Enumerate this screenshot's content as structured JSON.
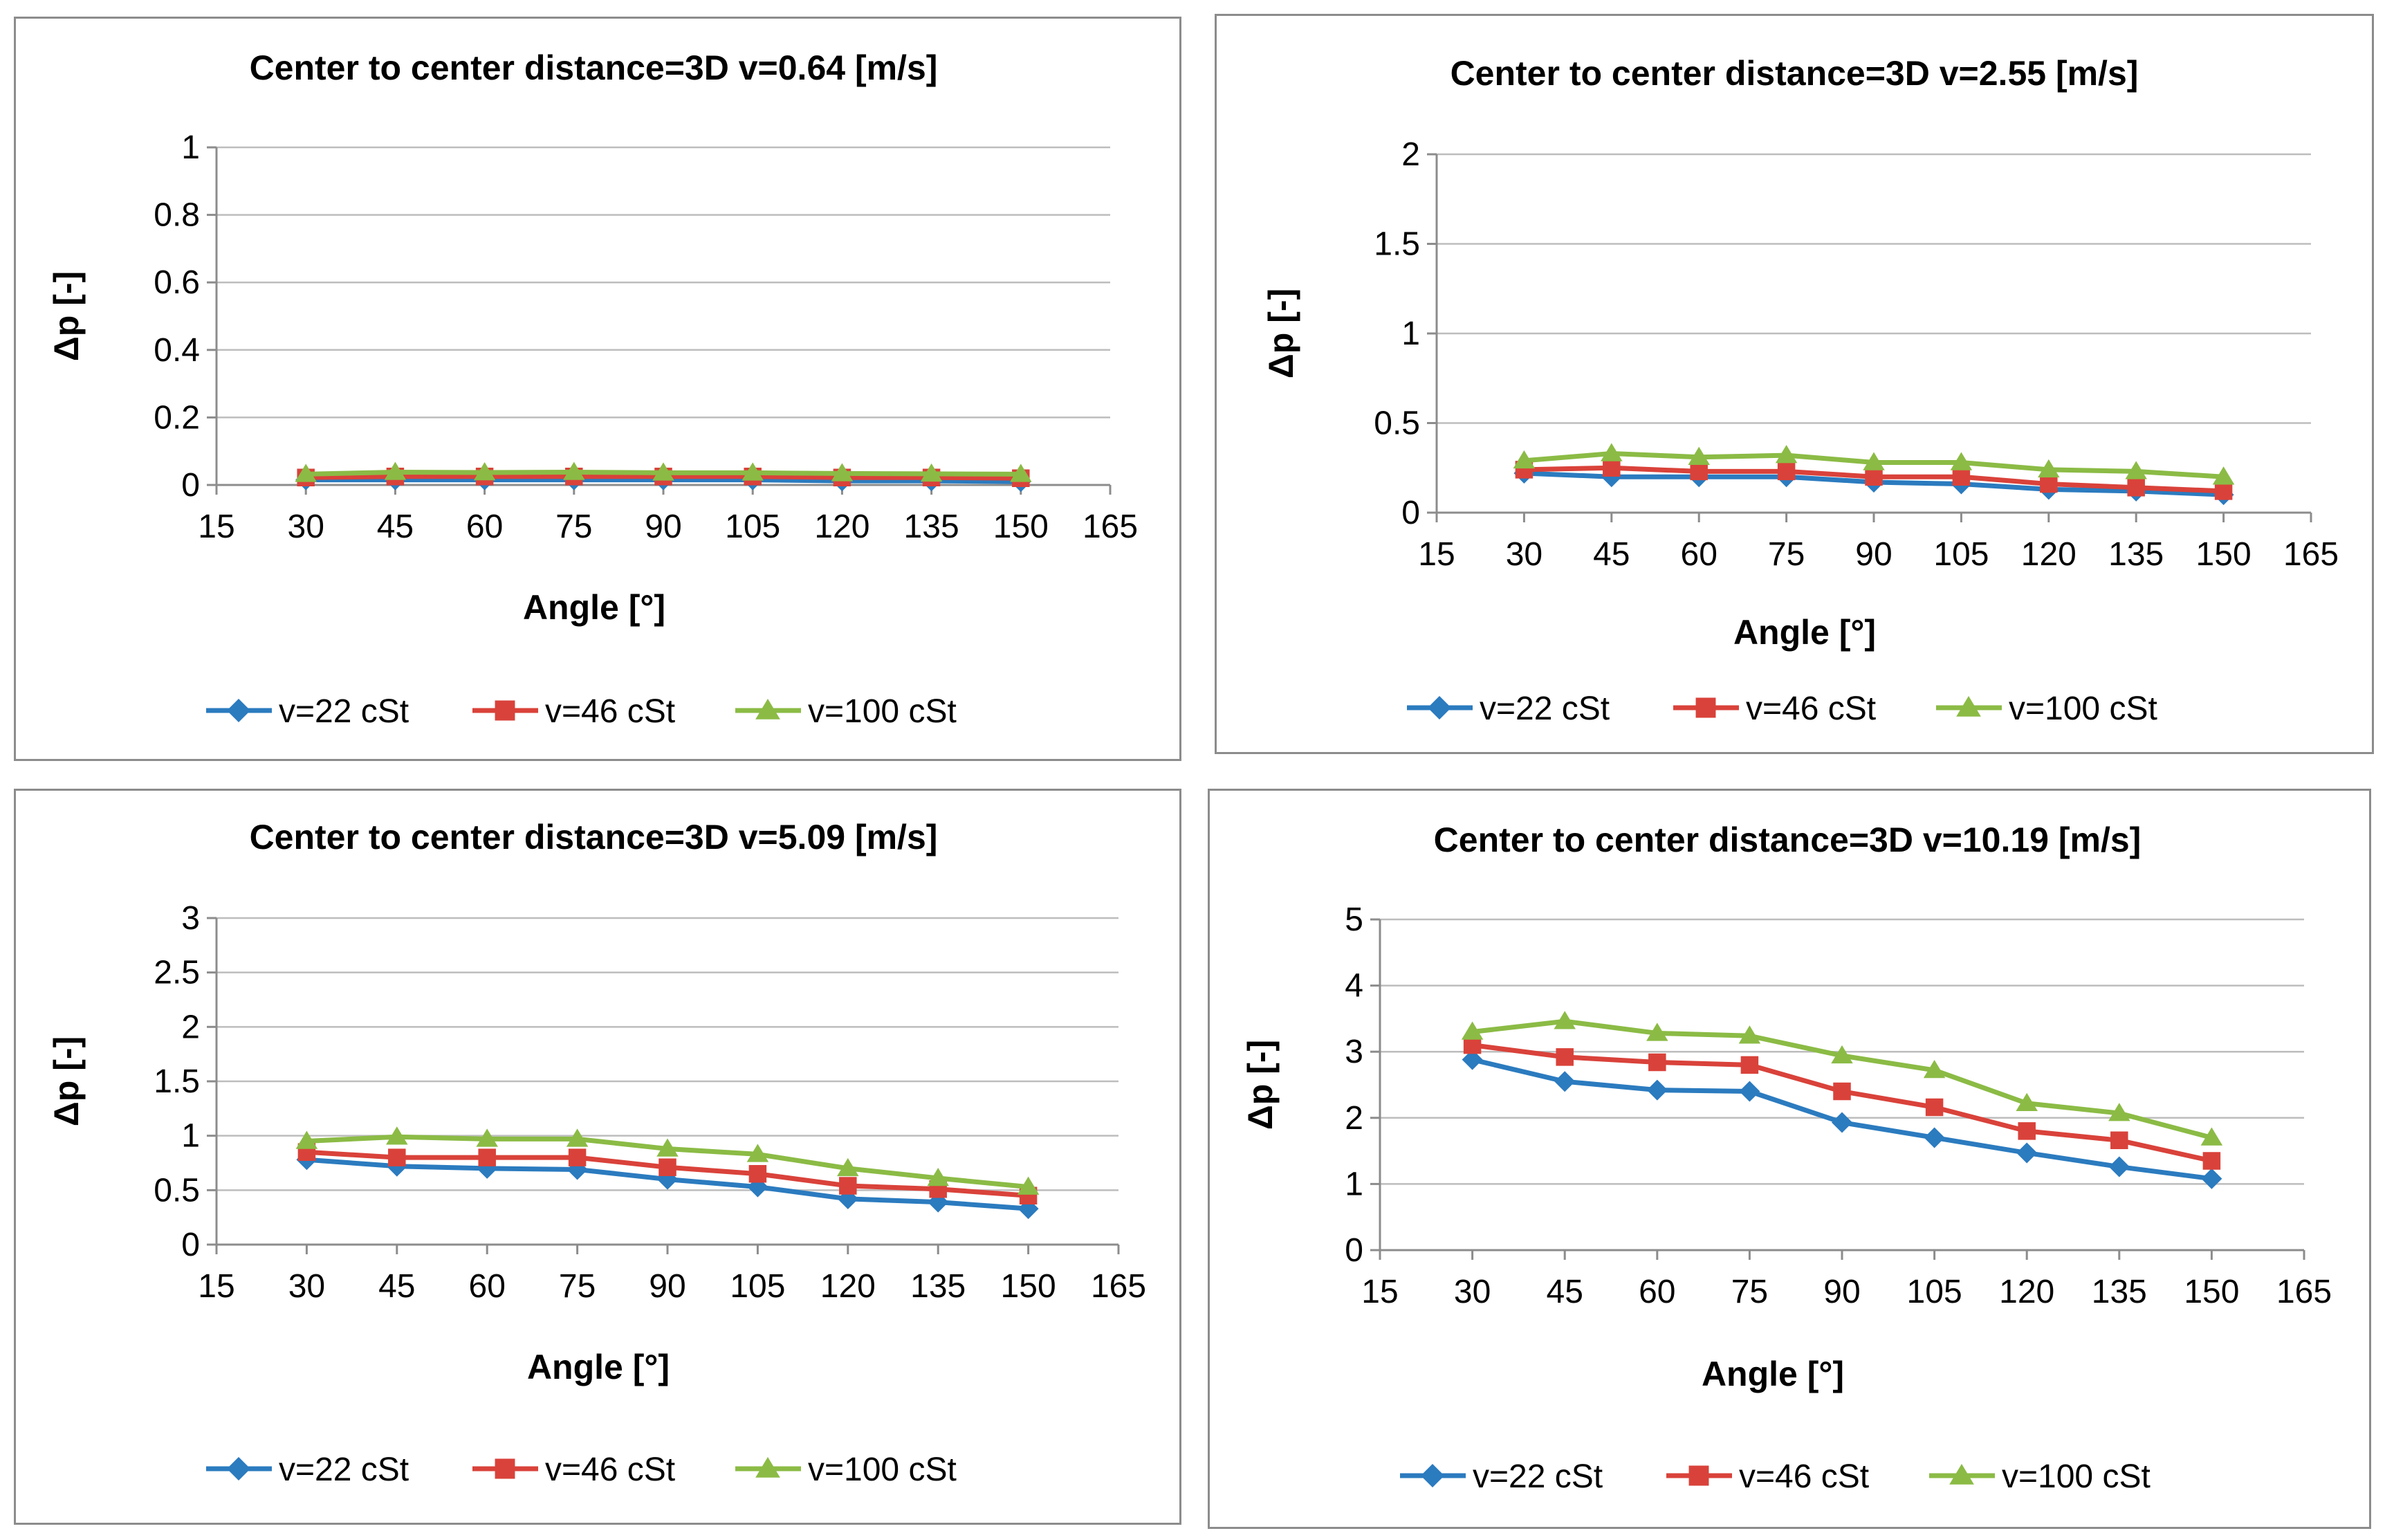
{
  "colors": {
    "v22": "#2b7bbf",
    "v46": "#d9423a",
    "v100": "#8bbb45"
  },
  "chart_data": [
    {
      "type": "line",
      "title": "Center to center distance=3D   v=0.64 [m/s]",
      "xlabel": "Angle [°]",
      "ylabel": "Δp [-]",
      "xlim": [
        15,
        165
      ],
      "xticks": [
        "15",
        "30",
        "45",
        "60",
        "75",
        "90",
        "105",
        "120",
        "135",
        "150",
        "165"
      ],
      "ylim": [
        0,
        1
      ],
      "yticks": [
        "0",
        "0.2",
        "0.4",
        "0.6",
        "0.8",
        "1"
      ],
      "grid": true,
      "legend_position": "bottom",
      "x": [
        30,
        45,
        60,
        75,
        90,
        105,
        120,
        135,
        150
      ],
      "series": [
        {
          "name": "v=22 cSt",
          "marker": "diamond",
          "values": [
            0.015,
            0.015,
            0.015,
            0.015,
            0.015,
            0.015,
            0.012,
            0.012,
            0.01
          ]
        },
        {
          "name": "v=46 cSt",
          "marker": "square",
          "values": [
            0.022,
            0.025,
            0.025,
            0.025,
            0.025,
            0.025,
            0.022,
            0.022,
            0.02
          ]
        },
        {
          "name": "v=100 cSt",
          "marker": "triangle",
          "values": [
            0.032,
            0.038,
            0.037,
            0.038,
            0.036,
            0.036,
            0.034,
            0.033,
            0.032
          ]
        }
      ]
    },
    {
      "type": "line",
      "title": "Center to center distance=3D   v=2.55 [m/s]",
      "xlabel": "Angle [°]",
      "ylabel": "Δp [-]",
      "xlim": [
        15,
        165
      ],
      "xticks": [
        "15",
        "30",
        "45",
        "60",
        "75",
        "90",
        "105",
        "120",
        "135",
        "150",
        "165"
      ],
      "ylim": [
        0,
        2
      ],
      "yticks": [
        "0",
        "0.5",
        "1",
        "1.5",
        "2"
      ],
      "grid": true,
      "legend_position": "bottom",
      "x": [
        30,
        45,
        60,
        75,
        90,
        105,
        120,
        135,
        150
      ],
      "series": [
        {
          "name": "v=22 cSt",
          "marker": "diamond",
          "values": [
            0.22,
            0.2,
            0.2,
            0.2,
            0.17,
            0.16,
            0.13,
            0.12,
            0.1
          ]
        },
        {
          "name": "v=46 cSt",
          "marker": "square",
          "values": [
            0.24,
            0.25,
            0.23,
            0.23,
            0.2,
            0.2,
            0.16,
            0.14,
            0.12
          ]
        },
        {
          "name": "v=100 cSt",
          "marker": "triangle",
          "values": [
            0.29,
            0.33,
            0.31,
            0.32,
            0.28,
            0.28,
            0.24,
            0.23,
            0.2
          ]
        }
      ]
    },
    {
      "type": "line",
      "title": "Center to center distance=3D   v=5.09 [m/s]",
      "xlabel": "Angle [°]",
      "ylabel": "Δp [-]",
      "xlim": [
        15,
        165
      ],
      "xticks": [
        "15",
        "30",
        "45",
        "60",
        "75",
        "90",
        "105",
        "120",
        "135",
        "150",
        "165"
      ],
      "ylim": [
        0,
        3
      ],
      "yticks": [
        "0",
        "0.5",
        "1",
        "1.5",
        "2",
        "2.5",
        "3"
      ],
      "grid": true,
      "legend_position": "bottom",
      "x": [
        30,
        45,
        60,
        75,
        90,
        105,
        120,
        135,
        150
      ],
      "series": [
        {
          "name": "v=22 cSt",
          "marker": "diamond",
          "values": [
            0.78,
            0.72,
            0.7,
            0.69,
            0.6,
            0.53,
            0.42,
            0.39,
            0.33
          ]
        },
        {
          "name": "v=46 cSt",
          "marker": "square",
          "values": [
            0.85,
            0.8,
            0.8,
            0.8,
            0.71,
            0.65,
            0.54,
            0.51,
            0.45
          ]
        },
        {
          "name": "v=100 cSt",
          "marker": "triangle",
          "values": [
            0.95,
            0.99,
            0.97,
            0.97,
            0.88,
            0.83,
            0.7,
            0.61,
            0.53
          ]
        }
      ]
    },
    {
      "type": "line",
      "title": "Center to center distance=3D   v=10.19 [m/s]",
      "xlabel": "Angle [°]",
      "ylabel": "Δp [-]",
      "xlim": [
        15,
        165
      ],
      "xticks": [
        "15",
        "30",
        "45",
        "60",
        "75",
        "90",
        "105",
        "120",
        "135",
        "150",
        "165"
      ],
      "ylim": [
        0,
        5
      ],
      "yticks": [
        "0",
        "1",
        "2",
        "3",
        "4",
        "5"
      ],
      "grid": true,
      "legend_position": "bottom",
      "x": [
        30,
        45,
        60,
        75,
        90,
        105,
        120,
        135,
        150
      ],
      "series": [
        {
          "name": "v=22 cSt",
          "marker": "diamond",
          "values": [
            2.88,
            2.55,
            2.42,
            2.4,
            1.93,
            1.7,
            1.47,
            1.26,
            1.08
          ]
        },
        {
          "name": "v=46 cSt",
          "marker": "square",
          "values": [
            3.1,
            2.92,
            2.84,
            2.8,
            2.4,
            2.16,
            1.8,
            1.66,
            1.35
          ]
        },
        {
          "name": "v=100 cSt",
          "marker": "triangle",
          "values": [
            3.3,
            3.46,
            3.28,
            3.24,
            2.94,
            2.72,
            2.22,
            2.07,
            1.7
          ]
        }
      ]
    }
  ]
}
